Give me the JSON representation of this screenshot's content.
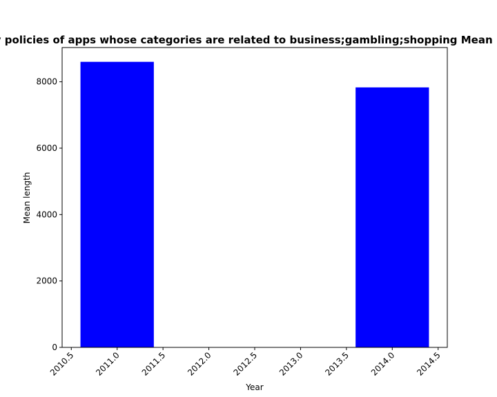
{
  "chart_data": {
    "type": "bar",
    "title": "Mean length of privacy policies of apps whose categories are related to business;gambling;shopping Mean length in privacy policies",
    "xlabel": "Year",
    "ylabel": "Mean length",
    "x": [
      2011,
      2014
    ],
    "values": [
      8600,
      7830
    ],
    "bar_width": 0.8,
    "xlim": [
      2010.4,
      2014.6
    ],
    "ylim": [
      0,
      9030
    ],
    "xticks": [
      2010.5,
      2011.0,
      2011.5,
      2012.0,
      2012.5,
      2013.0,
      2013.5,
      2014.0,
      2014.5
    ],
    "xtick_labels": [
      "2010.5",
      "2011.0",
      "2011.5",
      "2012.0",
      "2012.5",
      "2013.0",
      "2013.5",
      "2014.0",
      "2014.5"
    ],
    "yticks": [
      0,
      2000,
      4000,
      6000,
      8000
    ],
    "ytick_labels": [
      "0",
      "2000",
      "4000",
      "6000",
      "8000"
    ],
    "bar_color": "#0000ff",
    "grid": false,
    "legend": "none"
  }
}
